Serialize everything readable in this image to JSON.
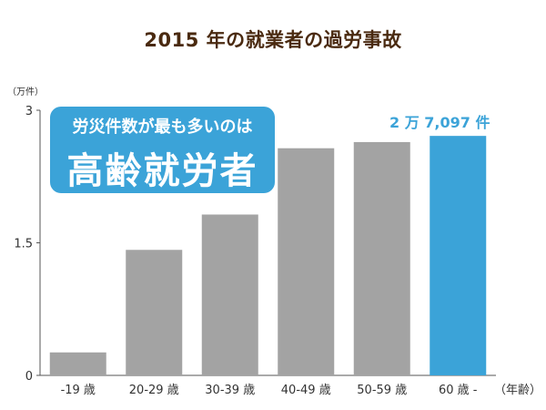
{
  "title": "2015 年の就業者の過労事故",
  "callout": {
    "line1": "労災件数が最も多いのは",
    "line2": "高齢就労者"
  },
  "chart_data": {
    "type": "bar",
    "title": "2015 年の就業者の過労事故",
    "ylabel": "（万件）",
    "xlabel": "（年齢）",
    "ylim": [
      0,
      3
    ],
    "yticks": [
      0,
      1.5,
      3
    ],
    "ytick_labels": [
      "0",
      "1.5",
      "3"
    ],
    "categories": [
      "-19 歳",
      "20-29 歳",
      "30-39 歳",
      "40-49 歳",
      "50-59 歳",
      "60 歳 -"
    ],
    "values": [
      0.26,
      1.42,
      1.82,
      2.57,
      2.64,
      2.7097
    ],
    "colors": [
      "#a3a3a3",
      "#a3a3a3",
      "#a3a3a3",
      "#a3a3a3",
      "#a3a3a3",
      "#3ba3d8"
    ],
    "highlight_index": 5,
    "highlight_label": "2 万 7,097 件",
    "grid": false
  }
}
